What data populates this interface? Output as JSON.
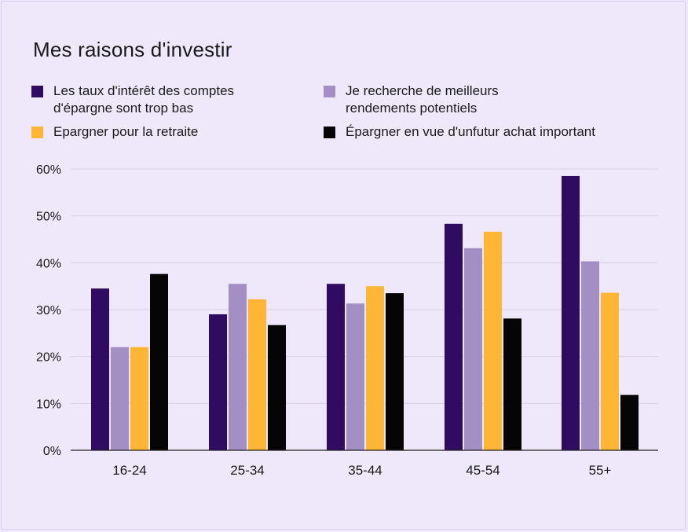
{
  "title": "Mes raisons d'investir",
  "colors": {
    "background": "#efe8fa",
    "grid": "#d8cfe8",
    "axis": "#222222"
  },
  "legend": [
    {
      "label": "Les taux d'intérêt des comptes\nd'épargne sont trop bas",
      "color": "#2f0b61"
    },
    {
      "label": "Je recherche de meilleurs\nrendements potentiels",
      "color": "#a48fc5"
    },
    {
      "label": "Epargner pour la retraite",
      "color": "#ffb635"
    },
    {
      "label": "Épargner en vue d'unfutur achat important",
      "color": "#050505"
    }
  ],
  "chart_data": {
    "type": "bar",
    "title": "Mes raisons d'investir",
    "xlabel": "",
    "ylabel": "",
    "categories": [
      "16-24",
      "25-34",
      "35-44",
      "45-54",
      "55+"
    ],
    "ylim": [
      0,
      60
    ],
    "yticks": [
      "0%",
      "10%",
      "20%",
      "30%",
      "40%",
      "50%",
      "60%"
    ],
    "grid": true,
    "legend_position": "top",
    "series": [
      {
        "name": "Les taux d'intérêt des comptes d'épargne sont trop bas",
        "color": "#2f0b61",
        "values": [
          34.5,
          29,
          35.5,
          48.3,
          58.5
        ]
      },
      {
        "name": "Je recherche de meilleurs rendements potentiels",
        "color": "#a48fc5",
        "values": [
          22,
          35.5,
          31.3,
          43.1,
          40.3
        ]
      },
      {
        "name": "Epargner pour la retraite",
        "color": "#ffb635",
        "values": [
          22,
          32.2,
          35,
          46.6,
          33.6
        ]
      },
      {
        "name": "Épargner en vue d'unfutur achat important",
        "color": "#050505",
        "values": [
          37.6,
          26.7,
          33.5,
          28.1,
          11.8
        ]
      }
    ]
  }
}
